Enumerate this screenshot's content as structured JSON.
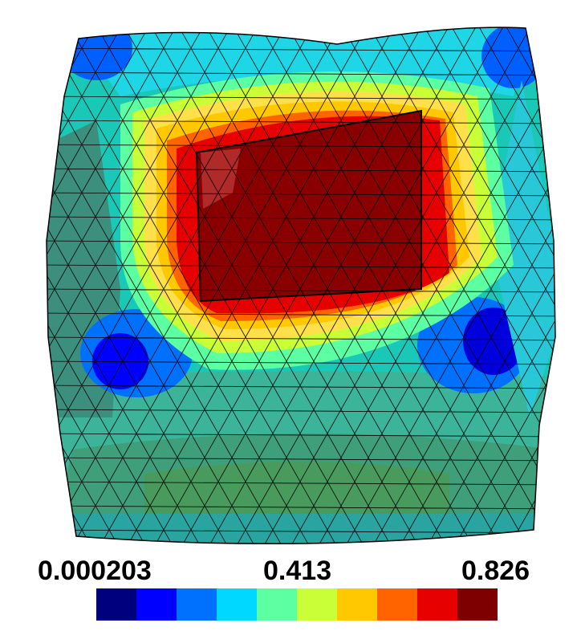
{
  "figure": {
    "type": "fem-mesh-contour",
    "colormap": "jet",
    "mesh_line_color": "#000000",
    "background": "#ffffff"
  },
  "colorbar": {
    "min_label": "0.000203",
    "mid_label": "0.413",
    "max_label": "0.826",
    "min_value": 0.000203,
    "max_value": 0.826,
    "levels": 10,
    "colors": [
      "#00007f",
      "#0000ff",
      "#0070ff",
      "#00d8ff",
      "#5cffa2",
      "#c8ff37",
      "#ffc800",
      "#ff6400",
      "#e60000",
      "#7f0000"
    ]
  }
}
